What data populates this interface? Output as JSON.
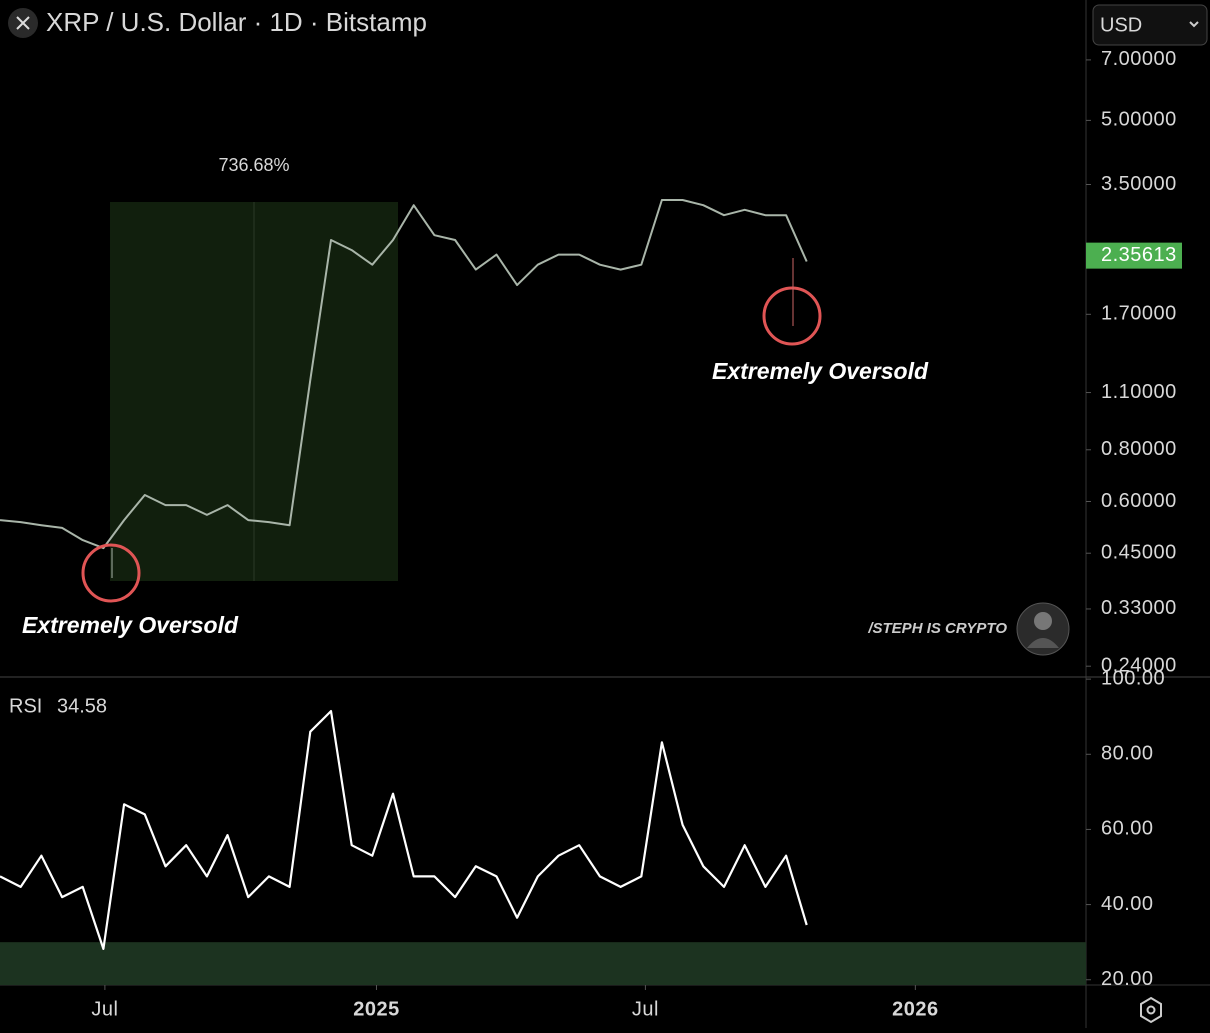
{
  "header": {
    "title": "XRP / U.S. Dollar · 1D · Bitstamp",
    "currency": "USD"
  },
  "chart_data": [
    {
      "type": "line",
      "log_scale": true,
      "annotations": [
        "736.68%",
        "Extremely Oversold",
        "Extremely Oversold"
      ],
      "watermark": "/STEPH IS CRYPTO",
      "last_price": 2.35613,
      "last_price_color": "#4caf50",
      "x": [
        0,
        1,
        2,
        3,
        4,
        5,
        6,
        7,
        8,
        9,
        10,
        11,
        12,
        13,
        14,
        15,
        16,
        17,
        18,
        19,
        20,
        21,
        22,
        23,
        24,
        25,
        26,
        27,
        28,
        29,
        30,
        31,
        32,
        33,
        34,
        35,
        36,
        37,
        38,
        39
      ],
      "xlim": [
        0,
        52.5
      ],
      "ylim": [
        0.226,
        7.82
      ],
      "yticks": [
        {
          "value": 7,
          "label": "7.00000"
        },
        {
          "value": 5,
          "label": "5.00000"
        },
        {
          "value": 3.5,
          "label": "3.50000"
        },
        {
          "value": 1.7,
          "label": "1.70000"
        },
        {
          "value": 1.1,
          "label": "1.10000"
        },
        {
          "value": 0.8,
          "label": "0.80000"
        },
        {
          "value": 0.6,
          "label": "0.60000"
        },
        {
          "value": 0.45,
          "label": "0.45000"
        },
        {
          "value": 0.33,
          "label": "0.33000"
        },
        {
          "value": 0.24,
          "label": "0.24000"
        }
      ],
      "series": [
        {
          "color": "#a9b5a9",
          "values": [
            0.541,
            0.535,
            0.526,
            0.518,
            0.484,
            0.463,
            0.541,
            0.622,
            0.588,
            0.588,
            0.557,
            0.588,
            0.541,
            0.535,
            0.526,
            1.18,
            2.57,
            2.43,
            2.24,
            2.57,
            3.12,
            2.64,
            2.57,
            2.18,
            2.37,
            2.0,
            2.24,
            2.37,
            2.37,
            2.24,
            2.18,
            2.24,
            3.21,
            3.21,
            3.12,
            2.95,
            3.04,
            2.95,
            2.95,
            2.28
          ]
        }
      ]
    },
    {
      "type": "line",
      "title": "RSI",
      "current_value": 34.58,
      "oversold_level": 30,
      "band_color": "#1c3320",
      "x": [
        0,
        1,
        2,
        3,
        4,
        5,
        6,
        7,
        8,
        9,
        10,
        11,
        12,
        13,
        14,
        15,
        16,
        17,
        18,
        19,
        20,
        21,
        22,
        23,
        24,
        25,
        26,
        27,
        28,
        29,
        30,
        31,
        32,
        33,
        34,
        35,
        36,
        37,
        38,
        39
      ],
      "xlim": [
        0,
        52.5
      ],
      "xticks": [
        {
          "value": 5.07,
          "label": "Jul"
        },
        {
          "value": 18.2,
          "label": "2025"
        },
        {
          "value": 31.2,
          "label": "Jul"
        },
        {
          "value": 44.25,
          "label": "2026"
        }
      ],
      "ylim": [
        18.6,
        100.3
      ],
      "yticks": [
        {
          "value": 100,
          "label": "100.00"
        },
        {
          "value": 80,
          "label": "80.00"
        },
        {
          "value": 60,
          "label": "60.00"
        },
        {
          "value": 40,
          "label": "40.00"
        },
        {
          "value": 20,
          "label": "20.00"
        }
      ],
      "series": [
        {
          "color": "#ffffff",
          "values": [
            47.5,
            44.7,
            53,
            42,
            44.7,
            28.2,
            66.7,
            64,
            50.2,
            55.8,
            47.5,
            58.5,
            42,
            47.5,
            44.7,
            86,
            91.5,
            55.8,
            53,
            69.5,
            47.5,
            47.5,
            42,
            50.2,
            47.5,
            36.5,
            47.5,
            53,
            55.8,
            47.5,
            44.7,
            47.5,
            83.2,
            61.2,
            50.2,
            44.7,
            55.8,
            44.7,
            53,
            34.58
          ]
        }
      ]
    }
  ]
}
